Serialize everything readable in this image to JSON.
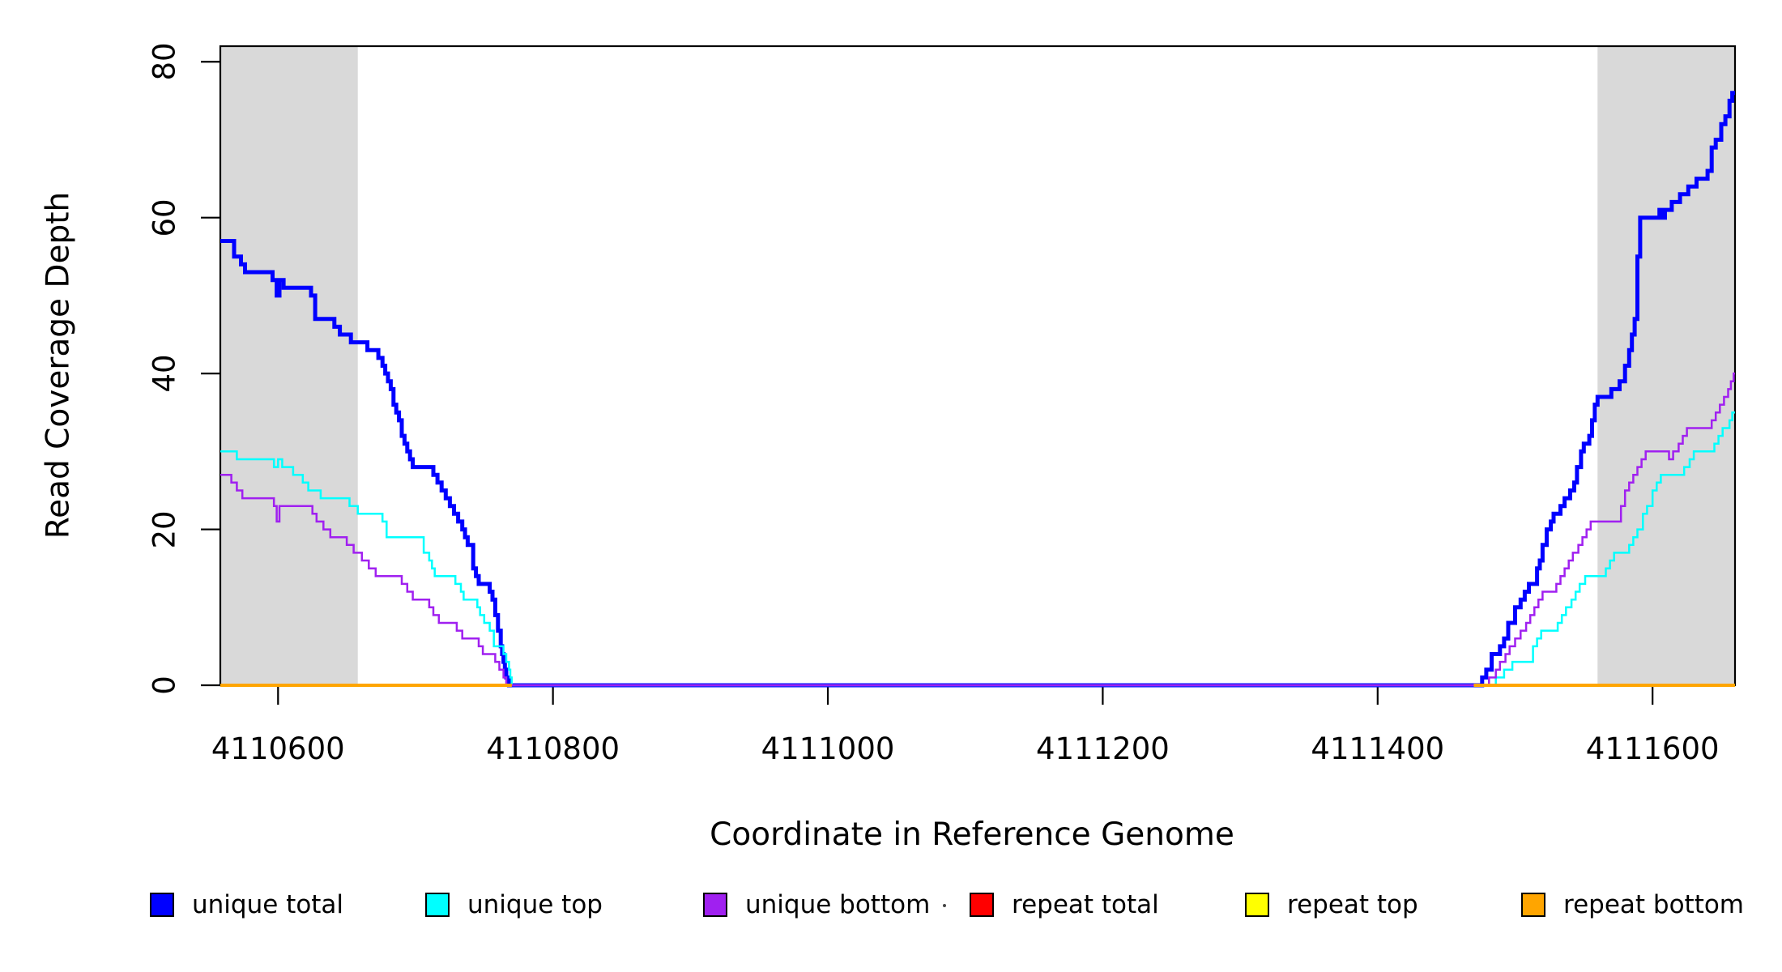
{
  "figure": {
    "x_axis_title": "Coordinate in Reference Genome",
    "y_axis_title": "Read Coverage Depth",
    "background": "#FFFFFF",
    "axis_color": "#000000"
  },
  "legend": {
    "items": [
      {
        "label": "unique total",
        "color": "#0000FF"
      },
      {
        "label": "unique top",
        "color": "#00FFFF"
      },
      {
        "label": "unique bottom",
        "color": "#A020F0"
      },
      {
        "label": "repeat total",
        "color": "#FF0000"
      },
      {
        "label": "repeat top",
        "color": "#FFFF00"
      },
      {
        "label": "repeat bottom",
        "color": "#FFA500"
      }
    ]
  },
  "chart_data": {
    "type": "line",
    "step": true,
    "title": "",
    "xlabel": "Coordinate in Reference Genome",
    "ylabel": "Read Coverage Depth",
    "xlim": [
      4110558,
      4111660
    ],
    "ylim": [
      0,
      82
    ],
    "x_ticks": [
      4110600,
      4110800,
      4111000,
      4111200,
      4111400,
      4111600
    ],
    "y_ticks": [
      0,
      20,
      40,
      60,
      80
    ],
    "grid": false,
    "legend_position": "bottom",
    "shaded_regions": [
      {
        "x0": 4110558,
        "x1": 4110658,
        "color": "#D9D9D9"
      },
      {
        "x0": 4111560,
        "x1": 4111660,
        "color": "#D9D9D9"
      }
    ],
    "series": [
      {
        "name": "unique total",
        "color": "#0000FF",
        "line_width": 5,
        "segments": [
          [
            [
              4110558,
              57
            ],
            [
              4110568,
              55
            ],
            [
              4110573,
              54
            ],
            [
              4110576,
              53
            ],
            [
              4110596,
              52
            ],
            [
              4110599,
              50
            ],
            [
              4110601,
              52
            ],
            [
              4110604,
              51
            ],
            [
              4110624,
              50
            ],
            [
              4110627,
              47
            ],
            [
              4110641,
              46
            ],
            [
              4110645,
              45
            ],
            [
              4110653,
              44
            ],
            [
              4110665,
              43
            ],
            [
              4110673,
              42
            ],
            [
              4110676,
              41
            ],
            [
              4110678,
              40
            ],
            [
              4110680,
              39
            ],
            [
              4110682,
              38
            ],
            [
              4110684,
              36
            ],
            [
              4110686,
              35
            ],
            [
              4110688,
              34
            ],
            [
              4110690,
              32
            ],
            [
              4110692,
              31
            ],
            [
              4110694,
              30
            ],
            [
              4110696,
              29
            ],
            [
              4110698,
              28
            ],
            [
              4110713,
              27
            ],
            [
              4110716,
              26
            ],
            [
              4110719,
              25
            ],
            [
              4110722,
              24
            ],
            [
              4110725,
              23
            ],
            [
              4110728,
              22
            ],
            [
              4110731,
              21
            ],
            [
              4110734,
              20
            ],
            [
              4110736,
              19
            ],
            [
              4110738,
              18
            ],
            [
              4110742,
              15
            ],
            [
              4110744,
              14
            ],
            [
              4110746,
              13
            ],
            [
              4110754,
              12
            ],
            [
              4110756,
              11
            ],
            [
              4110758,
              9
            ],
            [
              4110760,
              7
            ],
            [
              4110762,
              5
            ],
            [
              4110763,
              4
            ],
            [
              4110764,
              3
            ],
            [
              4110765,
              2
            ],
            [
              4110766,
              1
            ],
            [
              4110768,
              0
            ],
            [
              4111476,
              1
            ],
            [
              4111479,
              2
            ],
            [
              4111483,
              4
            ],
            [
              4111489,
              5
            ],
            [
              4111492,
              6
            ],
            [
              4111495,
              8
            ],
            [
              4111500,
              10
            ],
            [
              4111504,
              11
            ],
            [
              4111507,
              12
            ],
            [
              4111510,
              13
            ],
            [
              4111516,
              15
            ],
            [
              4111518,
              16
            ],
            [
              4111520,
              18
            ],
            [
              4111523,
              20
            ],
            [
              4111526,
              21
            ],
            [
              4111528,
              22
            ],
            [
              4111533,
              23
            ],
            [
              4111536,
              24
            ],
            [
              4111540,
              25
            ],
            [
              4111543,
              26
            ],
            [
              4111545,
              28
            ],
            [
              4111548,
              30
            ],
            [
              4111550,
              31
            ],
            [
              4111554,
              32
            ],
            [
              4111556,
              34
            ],
            [
              4111558,
              36
            ],
            [
              4111560,
              37
            ],
            [
              4111570,
              38
            ],
            [
              4111576,
              39
            ],
            [
              4111580,
              41
            ],
            [
              4111583,
              43
            ],
            [
              4111585,
              45
            ],
            [
              4111587,
              47
            ],
            [
              4111589,
              55
            ],
            [
              4111591,
              60
            ],
            [
              4111605,
              61
            ],
            [
              4111607,
              60
            ],
            [
              4111609,
              61
            ],
            [
              4111614,
              62
            ],
            [
              4111620,
              63
            ],
            [
              4111626,
              64
            ],
            [
              4111632,
              65
            ],
            [
              4111640,
              66
            ],
            [
              4111643,
              69
            ],
            [
              4111646,
              70
            ],
            [
              4111650,
              72
            ],
            [
              4111653,
              73
            ],
            [
              4111656,
              75
            ],
            [
              4111658,
              76
            ],
            [
              4111660,
              76
            ]
          ]
        ]
      },
      {
        "name": "unique top",
        "color": "#00FFFF",
        "line_width": 2.5,
        "segments": [
          [
            [
              4110558,
              30
            ],
            [
              4110570,
              29
            ],
            [
              4110597,
              28
            ],
            [
              4110600,
              29
            ],
            [
              4110603,
              28
            ],
            [
              4110611,
              27
            ],
            [
              4110618,
              26
            ],
            [
              4110622,
              25
            ],
            [
              4110631,
              24
            ],
            [
              4110652,
              23
            ],
            [
              4110658,
              22
            ],
            [
              4110676,
              21
            ],
            [
              4110679,
              19
            ],
            [
              4110706,
              17
            ],
            [
              4110710,
              16
            ],
            [
              4110712,
              15
            ],
            [
              4110714,
              14
            ],
            [
              4110729,
              13
            ],
            [
              4110733,
              12
            ],
            [
              4110735,
              11
            ],
            [
              4110745,
              10
            ],
            [
              4110747,
              9
            ],
            [
              4110750,
              8
            ],
            [
              4110754,
              7
            ],
            [
              4110757,
              5
            ],
            [
              4110764,
              4
            ],
            [
              4110766,
              3
            ],
            [
              4110768,
              2
            ],
            [
              4110769,
              1
            ],
            [
              4110770,
              0
            ],
            [
              4111486,
              1
            ],
            [
              4111492,
              2
            ],
            [
              4111498,
              3
            ],
            [
              4111513,
              5
            ],
            [
              4111516,
              6
            ],
            [
              4111519,
              7
            ],
            [
              4111531,
              8
            ],
            [
              4111534,
              9
            ],
            [
              4111537,
              10
            ],
            [
              4111541,
              11
            ],
            [
              4111544,
              12
            ],
            [
              4111547,
              13
            ],
            [
              4111551,
              14
            ],
            [
              4111566,
              15
            ],
            [
              4111569,
              16
            ],
            [
              4111572,
              17
            ],
            [
              4111583,
              18
            ],
            [
              4111586,
              19
            ],
            [
              4111589,
              20
            ],
            [
              4111593,
              22
            ],
            [
              4111596,
              23
            ],
            [
              4111600,
              25
            ],
            [
              4111603,
              26
            ],
            [
              4111606,
              27
            ],
            [
              4111623,
              28
            ],
            [
              4111627,
              29
            ],
            [
              4111630,
              30
            ],
            [
              4111645,
              31
            ],
            [
              4111648,
              32
            ],
            [
              4111651,
              33
            ],
            [
              4111656,
              34
            ],
            [
              4111658,
              35
            ],
            [
              4111660,
              35
            ]
          ]
        ]
      },
      {
        "name": "unique bottom",
        "color": "#A020F0",
        "line_width": 2.5,
        "segments": [
          [
            [
              4110558,
              27
            ],
            [
              4110566,
              26
            ],
            [
              4110570,
              25
            ],
            [
              4110574,
              24
            ],
            [
              4110597,
              23
            ],
            [
              4110599,
              21
            ],
            [
              4110601,
              23
            ],
            [
              4110625,
              22
            ],
            [
              4110628,
              21
            ],
            [
              4110633,
              20
            ],
            [
              4110638,
              19
            ],
            [
              4110650,
              18
            ],
            [
              4110655,
              17
            ],
            [
              4110661,
              16
            ],
            [
              4110666,
              15
            ],
            [
              4110671,
              14
            ],
            [
              4110690,
              13
            ],
            [
              4110694,
              12
            ],
            [
              4110698,
              11
            ],
            [
              4110710,
              10
            ],
            [
              4110713,
              9
            ],
            [
              4110717,
              8
            ],
            [
              4110730,
              7
            ],
            [
              4110734,
              6
            ],
            [
              4110746,
              5
            ],
            [
              4110749,
              4
            ],
            [
              4110758,
              3
            ],
            [
              4110761,
              2
            ],
            [
              4110764,
              1
            ],
            [
              4110766,
              0
            ],
            [
              4111481,
              1
            ],
            [
              4111486,
              2
            ],
            [
              4111489,
              3
            ],
            [
              4111493,
              4
            ],
            [
              4111496,
              5
            ],
            [
              4111500,
              6
            ],
            [
              4111504,
              7
            ],
            [
              4111508,
              8
            ],
            [
              4111511,
              9
            ],
            [
              4111514,
              10
            ],
            [
              4111517,
              11
            ],
            [
              4111520,
              12
            ],
            [
              4111530,
              13
            ],
            [
              4111533,
              14
            ],
            [
              4111536,
              15
            ],
            [
              4111539,
              16
            ],
            [
              4111542,
              17
            ],
            [
              4111546,
              18
            ],
            [
              4111549,
              19
            ],
            [
              4111552,
              20
            ],
            [
              4111555,
              21
            ],
            [
              4111577,
              23
            ],
            [
              4111580,
              25
            ],
            [
              4111583,
              26
            ],
            [
              4111586,
              27
            ],
            [
              4111589,
              28
            ],
            [
              4111592,
              29
            ],
            [
              4111595,
              30
            ],
            [
              4111612,
              29
            ],
            [
              4111615,
              30
            ],
            [
              4111619,
              31
            ],
            [
              4111622,
              32
            ],
            [
              4111625,
              33
            ],
            [
              4111643,
              34
            ],
            [
              4111646,
              35
            ],
            [
              4111649,
              36
            ],
            [
              4111652,
              37
            ],
            [
              4111655,
              38
            ],
            [
              4111657,
              39
            ],
            [
              4111659,
              40
            ],
            [
              4111660,
              40
            ]
          ]
        ]
      },
      {
        "name": "repeat total",
        "color": "#FF0000",
        "line_width": 4,
        "segments": [
          [
            [
              4110558,
              0
            ],
            [
              4110770,
              0
            ]
          ],
          [
            [
              4111470,
              0
            ],
            [
              4111660,
              0
            ]
          ]
        ]
      },
      {
        "name": "repeat top",
        "color": "#FFFF00",
        "line_width": 4,
        "segments": [
          [
            [
              4110558,
              0
            ],
            [
              4110770,
              0
            ]
          ],
          [
            [
              4111470,
              0
            ],
            [
              4111660,
              0
            ]
          ]
        ]
      },
      {
        "name": "repeat bottom",
        "color": "#FFA500",
        "line_width": 4,
        "segments": [
          [
            [
              4110558,
              0
            ],
            [
              4110770,
              0
            ]
          ],
          [
            [
              4111470,
              0
            ],
            [
              4111660,
              0
            ]
          ]
        ]
      }
    ]
  }
}
